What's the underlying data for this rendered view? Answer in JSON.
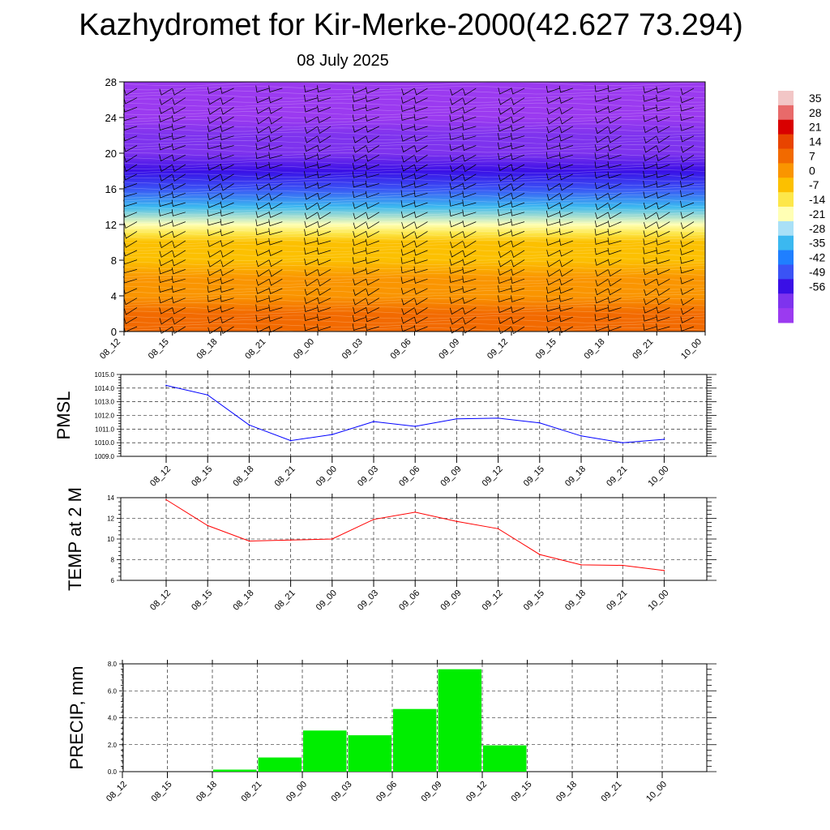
{
  "title": "Kazhydromet for Kir-Merke-2000(42.627 73.294)",
  "subtitle": "08 July 2025",
  "colors": {
    "pmsl_line": "#0000ff",
    "temp_line": "#ff0000",
    "precip_bar": "#00ee00",
    "grid": "#000000"
  },
  "chart_data": [
    {
      "type": "heatmap",
      "name": "cross-section",
      "ylim": [
        0,
        28
      ],
      "yticks": [
        "0",
        "4",
        "8",
        "12",
        "16",
        "20",
        "24",
        "28"
      ],
      "xticks": [
        "08_12",
        "08_15",
        "08_18",
        "08_21",
        "09_00",
        "09_03",
        "09_06",
        "09_09",
        "09_12",
        "09_15",
        "09_18",
        "09_21",
        "10_00"
      ],
      "levels_height": [
        0,
        2,
        4,
        6,
        8,
        10,
        11,
        12,
        14,
        16,
        18,
        20,
        22,
        24,
        28
      ],
      "levels_value": [
        12,
        9,
        6,
        3,
        0,
        -3,
        -7,
        -14,
        -28,
        -42,
        -50,
        -56,
        -52,
        -60,
        -62
      ],
      "colorbar": {
        "labels": [
          "35",
          "28",
          "21",
          "14",
          "7",
          "0",
          "-7",
          "-14",
          "-21",
          "-28",
          "-35",
          "-42",
          "-49",
          "-56"
        ],
        "colors": [
          "#f2c6c6",
          "#e86a6a",
          "#d90000",
          "#e84400",
          "#f26a00",
          "#fa9500",
          "#fcc000",
          "#fde74a",
          "#ffffb4",
          "#a9e0f7",
          "#3bb8f0",
          "#1f7fff",
          "#3a53f5",
          "#3a0fe6",
          "#7e33ee",
          "#9b3af0"
        ]
      },
      "wind_barbs": true
    },
    {
      "type": "line",
      "name": "pmsl",
      "ylabel": "PMSL",
      "ylim": [
        1009.0,
        1015.0
      ],
      "yticks": [
        "1009.0",
        "1010.0",
        "1011.0",
        "1012.0",
        "1013.0",
        "1014.0",
        "1015.0"
      ],
      "categories": [
        "08_12",
        "08_15",
        "08_18",
        "08_21",
        "09_00",
        "09_03",
        "09_06",
        "09_09",
        "09_12",
        "09_15",
        "09_18",
        "09_21",
        "10_00"
      ],
      "values": [
        1014.2,
        1013.5,
        1011.3,
        1010.15,
        1010.6,
        1011.55,
        1011.2,
        1011.75,
        1011.8,
        1011.45,
        1010.5,
        1010.0,
        1010.25
      ],
      "grid": true
    },
    {
      "type": "line",
      "name": "temp",
      "ylabel": "TEMP at 2 M",
      "ylim": [
        6,
        14
      ],
      "yticks": [
        "6",
        "8",
        "10",
        "12",
        "14"
      ],
      "categories": [
        "08_12",
        "08_15",
        "08_18",
        "08_21",
        "09_00",
        "09_03",
        "09_06",
        "09_09",
        "09_12",
        "09_15",
        "09_18",
        "09_21",
        "10_00"
      ],
      "values": [
        13.8,
        11.3,
        9.8,
        9.9,
        10.0,
        11.9,
        12.6,
        11.7,
        11.0,
        8.5,
        7.5,
        7.45,
        6.95
      ],
      "grid": true
    },
    {
      "type": "bar",
      "name": "precip",
      "ylabel": "PRECIP, mm",
      "ylim": [
        0.0,
        8.0
      ],
      "yticks": [
        "0.0",
        "2.0",
        "4.0",
        "6.0",
        "8.0"
      ],
      "categories": [
        "08_12",
        "08_15",
        "08_18",
        "08_21",
        "09_00",
        "09_03",
        "09_06",
        "09_09",
        "09_12",
        "09_15",
        "09_18",
        "09_21",
        "10_00"
      ],
      "values": [
        0.0,
        0.0,
        0.15,
        1.05,
        3.05,
        2.7,
        4.65,
        7.6,
        1.95,
        0.0,
        0.0,
        0.0,
        0.0
      ],
      "grid": true
    }
  ]
}
